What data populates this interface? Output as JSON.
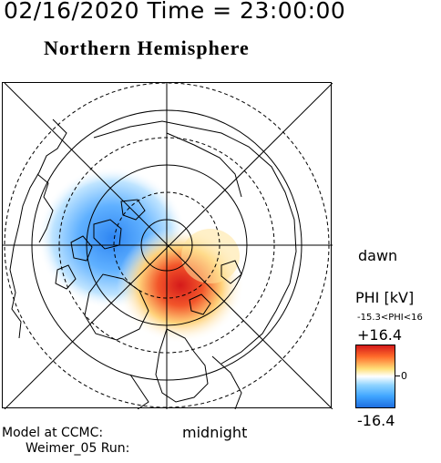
{
  "header": {
    "date_time": "02/16/2020 Time = 23:00:00",
    "hemisphere": "Northern Hemisphere"
  },
  "map": {
    "labels": {
      "dawn": "dawn",
      "midnight": "midnight"
    },
    "colors": {
      "positive": "#d51a1a",
      "negative": "#1f6fe0",
      "zero": "#ffffff"
    }
  },
  "colorbar": {
    "title": "PHI [kV]",
    "range_text": "-15.3<PHI<16",
    "max": "+16.4",
    "zero": "0",
    "min": "-16.4"
  },
  "footer": {
    "model": "Model at CCMC:",
    "run": "Weimer_05 Run:"
  }
}
